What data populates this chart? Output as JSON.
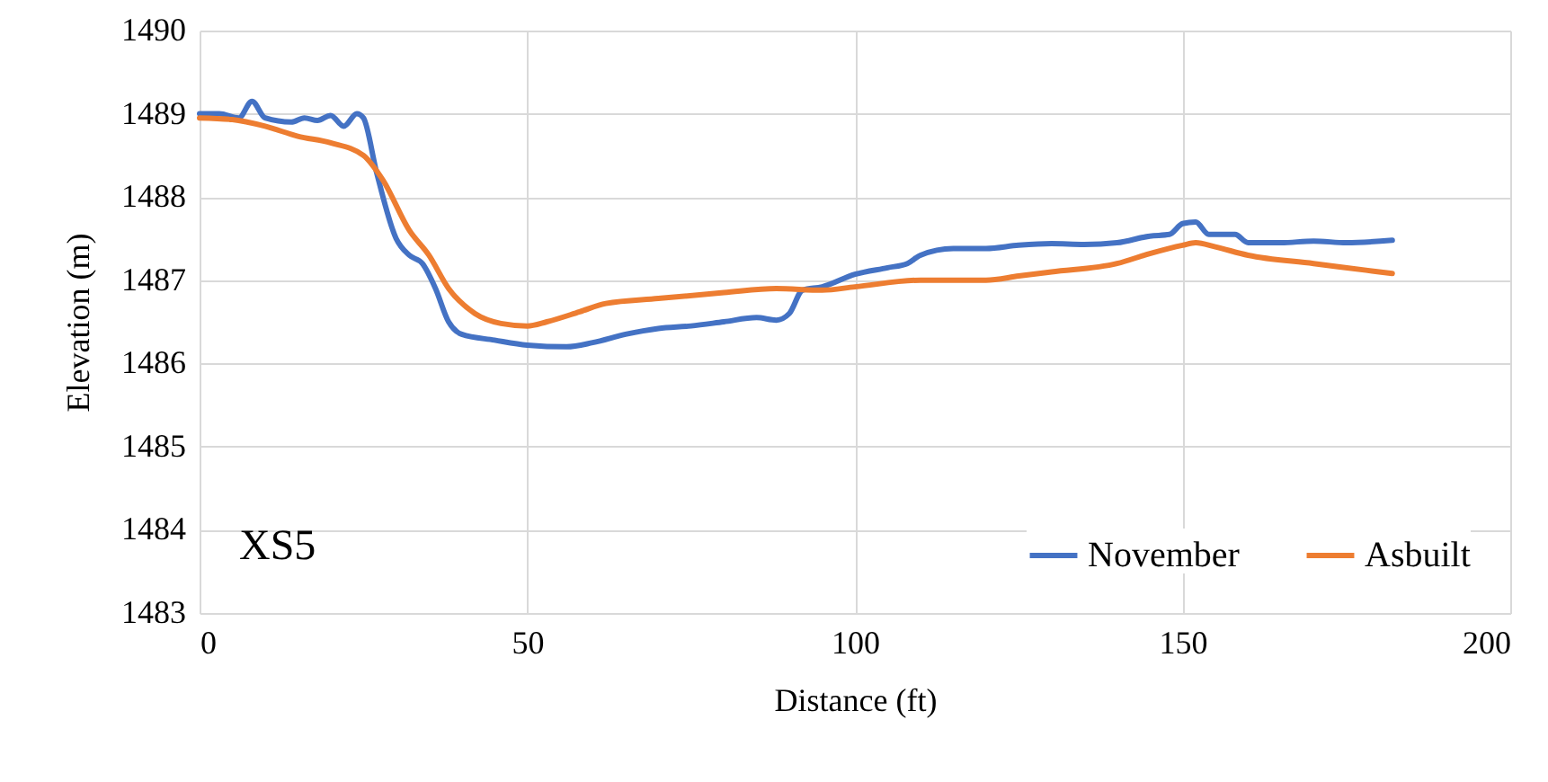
{
  "chart_data": {
    "type": "line",
    "xlabel": "Distance (ft)",
    "ylabel": "Elevation (m)",
    "annotations": [
      "XS5"
    ],
    "xlim": [
      0,
      200
    ],
    "xticks": [
      0,
      50,
      100,
      150,
      200
    ],
    "ylim": [
      1483,
      1490
    ],
    "yticks": [
      1483,
      1484,
      1485,
      1486,
      1487,
      1488,
      1489,
      1490
    ],
    "grid": true,
    "legend": "bottom right",
    "marker": "none",
    "line_style": "solid",
    "series": [
      {
        "name": "November",
        "color": "#4472c4",
        "x": [
          0,
          3,
          6,
          8,
          10,
          14,
          16,
          18,
          20,
          22,
          24,
          25,
          27,
          30,
          32,
          34,
          36,
          38,
          40,
          45,
          50,
          56,
          60,
          65,
          70,
          75,
          80,
          85,
          88,
          90,
          92,
          95,
          100,
          105,
          108,
          110,
          115,
          120,
          125,
          130,
          135,
          140,
          145,
          148,
          150,
          152,
          154,
          158,
          160,
          165,
          170,
          175,
          182
        ],
        "values": [
          1489.0,
          1489.0,
          1488.95,
          1489.15,
          1488.95,
          1488.9,
          1488.95,
          1488.92,
          1488.98,
          1488.85,
          1489.0,
          1488.95,
          1488.3,
          1487.5,
          1487.3,
          1487.2,
          1486.9,
          1486.5,
          1486.35,
          1486.28,
          1486.22,
          1486.2,
          1486.25,
          1486.35,
          1486.42,
          1486.45,
          1486.5,
          1486.55,
          1486.52,
          1486.6,
          1486.88,
          1486.92,
          1487.07,
          1487.15,
          1487.2,
          1487.3,
          1487.38,
          1487.38,
          1487.42,
          1487.44,
          1487.43,
          1487.45,
          1487.53,
          1487.55,
          1487.68,
          1487.7,
          1487.55,
          1487.55,
          1487.45,
          1487.45,
          1487.47,
          1487.45,
          1487.48
        ]
      },
      {
        "name": "Asbuilt",
        "color": "#ed7d31",
        "x": [
          0,
          5,
          10,
          15,
          20,
          25,
          28,
          32,
          35,
          38,
          42,
          46,
          50,
          53,
          58,
          62,
          70,
          80,
          88,
          95,
          100,
          110,
          120,
          125,
          130,
          140,
          145,
          150,
          152,
          155,
          160,
          170,
          178,
          182
        ],
        "values": [
          1488.95,
          1488.93,
          1488.85,
          1488.73,
          1488.65,
          1488.5,
          1488.2,
          1487.6,
          1487.3,
          1486.9,
          1486.6,
          1486.48,
          1486.45,
          1486.5,
          1486.62,
          1486.72,
          1486.78,
          1486.85,
          1486.9,
          1486.88,
          1486.92,
          1487.0,
          1487.0,
          1487.05,
          1487.1,
          1487.2,
          1487.32,
          1487.42,
          1487.45,
          1487.4,
          1487.3,
          1487.2,
          1487.12,
          1487.08
        ]
      }
    ]
  }
}
